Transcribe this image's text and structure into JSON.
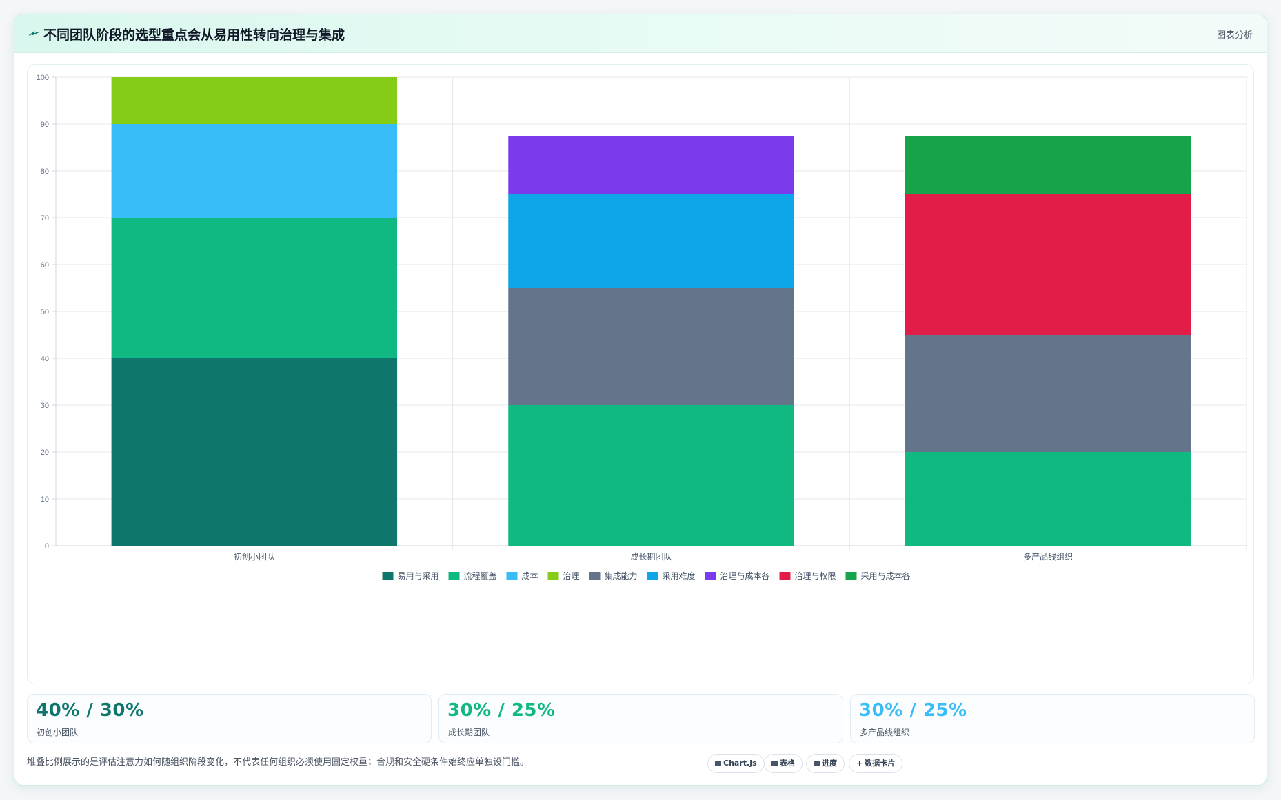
{
  "header": {
    "title": "不同团队阶段的选型重点会从易用性转向治理与集成",
    "link_label": "图表分析",
    "icon": "spark-icon"
  },
  "chart_data": {
    "type": "bar",
    "stacked": true,
    "categories": [
      "初创小团队",
      "成长期团队",
      "多产品线组织"
    ],
    "ylim": [
      0,
      100
    ],
    "yticks": [
      0,
      10,
      20,
      30,
      40,
      50,
      60,
      70,
      80,
      90,
      100
    ],
    "grid": true,
    "legend_position": "bottom",
    "series": [
      {
        "name": "易用与采用",
        "color": "#0f766e",
        "values": [
          40,
          0,
          0
        ]
      },
      {
        "name": "流程覆盖",
        "color": "#10b981",
        "values": [
          30,
          30,
          20
        ]
      },
      {
        "name": "成本",
        "color": "#38bdf8",
        "values": [
          20,
          0,
          0
        ]
      },
      {
        "name": "治理",
        "color": "#84cc16",
        "values": [
          10,
          0,
          0
        ]
      },
      {
        "name": "集成能力",
        "color": "#64748b",
        "values": [
          0,
          25,
          25
        ]
      },
      {
        "name": "采用难度",
        "color": "#0ea5e9",
        "values": [
          0,
          20,
          0
        ]
      },
      {
        "name": "治理与成本各",
        "color": "#7c3aed",
        "values": [
          0,
          12.5,
          0
        ]
      },
      {
        "name": "治理与权限",
        "color": "#e11d48",
        "values": [
          0,
          0,
          30
        ]
      },
      {
        "name": "采用与成本各",
        "color": "#16a34a",
        "values": [
          0,
          0,
          12.5
        ]
      }
    ]
  },
  "kpis": [
    {
      "value": "40% / 30%",
      "label": "初创小团队",
      "color": "#0f766e"
    },
    {
      "value": "30% / 25%",
      "label": "成长期团队",
      "color": "#10b981"
    },
    {
      "value": "30% / 25%",
      "label": "多产品线组织",
      "color": "#38bdf8"
    }
  ],
  "footnote": "堆叠比例展示的是评估注意力如何随组织阶段变化，不代表任何组织必须使用固定权重；合规和安全硬条件始终应单独设门槛。",
  "chips": [
    {
      "label": "Chart.js",
      "icon": "chart-icon"
    },
    {
      "label": "表格",
      "icon": "table-icon"
    },
    {
      "label": "进度",
      "icon": "progress-icon"
    },
    {
      "label": "数据卡片",
      "icon": "plus-icon"
    }
  ]
}
